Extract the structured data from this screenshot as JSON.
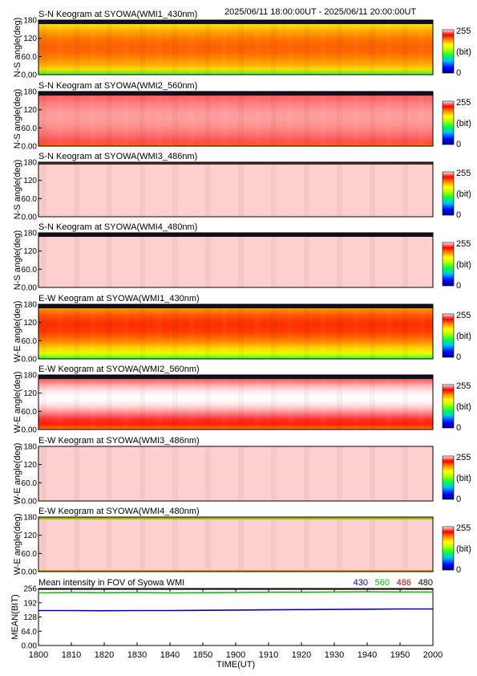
{
  "header": {
    "time_range": "2025/06/11 18:00:00UT - 2025/06/11 20:00:00UT"
  },
  "colorbar": {
    "max_label": "255",
    "unit_label": "(bit)",
    "min_label": "0"
  },
  "chart_data": [
    {
      "type": "heatmap",
      "title": "S-N Keogram at SYOWA(WMI1_430nm)",
      "ylabel": "N-S angle(deg)",
      "yticks": [
        "180",
        "120",
        "60.0",
        "0.00"
      ],
      "ylim": [
        0,
        180
      ],
      "x": [
        "1800",
        "2000"
      ],
      "z_range": [
        0,
        255
      ],
      "profile": {
        "kind": "orange",
        "center": 90,
        "core_value": 205,
        "edge_value": 160,
        "top_band": "dark"
      }
    },
    {
      "type": "heatmap",
      "title": "S-N Keogram at SYOWA(WMI2_560nm)",
      "ylabel": "N-S angle(deg)",
      "yticks": [
        "180",
        "120",
        "60.0",
        "0.00"
      ],
      "ylim": [
        0,
        180
      ],
      "z_range": [
        0,
        255
      ],
      "profile": {
        "kind": "pink",
        "center": 95,
        "core_value": 245,
        "edge_value": 232,
        "top_band": "dark"
      }
    },
    {
      "type": "heatmap",
      "title": "S-N Keogram at SYOWA(WMI3_486nm)",
      "ylabel": "N-S angle(deg)",
      "yticks": [
        "180",
        "120",
        "60.0",
        "0.00"
      ],
      "ylim": [
        0,
        180
      ],
      "z_range": [
        0,
        255
      ],
      "profile": {
        "kind": "flat",
        "core_value": 250,
        "top_band": "dark-thin"
      }
    },
    {
      "type": "heatmap",
      "title": "S-N Keogram at SYOWA(WMI4_480nm)",
      "ylabel": "N-S angle(deg)",
      "yticks": [
        "180",
        "120",
        "60.0",
        "0.00"
      ],
      "ylim": [
        0,
        180
      ],
      "z_range": [
        0,
        255
      ],
      "profile": {
        "kind": "flat",
        "core_value": 250,
        "top_band": "dark"
      }
    },
    {
      "type": "heatmap",
      "title": "E-W Keogram at SYOWA(WMI1_430nm)",
      "ylabel": "W-E angle(deg)",
      "yticks": [
        "180",
        "120",
        "60.0",
        "0.00"
      ],
      "ylim": [
        0,
        180
      ],
      "z_range": [
        0,
        255
      ],
      "profile": {
        "kind": "orange-arc",
        "center": 110,
        "core_value": 215,
        "edge_value": 160,
        "top_band": "dark"
      }
    },
    {
      "type": "heatmap",
      "title": "E-W Keogram at SYOWA(WMI2_560nm)",
      "ylabel": "W-E angle(deg)",
      "yticks": [
        "180",
        "120",
        "60.0",
        "0.00"
      ],
      "ylim": [
        0,
        180
      ],
      "z_range": [
        0,
        255
      ],
      "profile": {
        "kind": "pink-arc",
        "center": 105,
        "core_value": 255,
        "edge_value": 215,
        "top_band": "dark"
      }
    },
    {
      "type": "heatmap",
      "title": "E-W Keogram at SYOWA(WMI3_486nm)",
      "ylabel": "W-E angle(deg)",
      "yticks": [
        "180",
        "120",
        "60.0",
        "0.00"
      ],
      "ylim": [
        0,
        180
      ],
      "z_range": [
        0,
        255
      ],
      "profile": {
        "kind": "flat",
        "core_value": 250,
        "top_band": "none"
      }
    },
    {
      "type": "heatmap",
      "title": "E-W Keogram at SYOWA(WMI4_480nm)",
      "ylabel": "W-E angle(deg)",
      "yticks": [
        "180",
        "120",
        "60.0",
        "0.00"
      ],
      "ylim": [
        0,
        180
      ],
      "z_range": [
        0,
        255
      ],
      "profile": {
        "kind": "flat",
        "core_value": 250,
        "top_band": "yellow"
      }
    },
    {
      "type": "line",
      "title": "Mean intensity in FOV of Syowa WMI",
      "ylabel": "MEAN(BIT)",
      "xlabel": "TIME(UT)",
      "xticks": [
        "1800",
        "1810",
        "1820",
        "1830",
        "1840",
        "1850",
        "1900",
        "1910",
        "1920",
        "1930",
        "1940",
        "1950",
        "2000"
      ],
      "yticks": [
        "256",
        "192",
        "128",
        "64.0",
        "0.00"
      ],
      "ylim": [
        0,
        256
      ],
      "xlim": [
        0,
        120
      ],
      "legend_position": "top-right",
      "series": [
        {
          "name": "430",
          "color": "#0000c0",
          "x": [
            0,
            10,
            20,
            30,
            40,
            50,
            60,
            70,
            80,
            90,
            100,
            110,
            120
          ],
          "values": [
            157,
            157,
            156,
            157,
            157,
            158,
            159,
            160,
            161,
            162,
            163,
            164,
            164
          ]
        },
        {
          "name": "560",
          "color": "#00c000",
          "x": [
            0,
            10,
            20,
            30,
            40,
            50,
            60,
            70,
            80,
            90,
            100,
            110,
            120
          ],
          "values": [
            236,
            238,
            237,
            238,
            236,
            237,
            238,
            239,
            239,
            240,
            241,
            240,
            240
          ]
        },
        {
          "name": "486",
          "color": "#c00000",
          "x": [
            0,
            120
          ],
          "values": [
            253,
            253
          ]
        },
        {
          "name": "480",
          "color": "#000000",
          "x": [
            0,
            120
          ],
          "values": [
            254,
            254
          ]
        }
      ]
    }
  ]
}
